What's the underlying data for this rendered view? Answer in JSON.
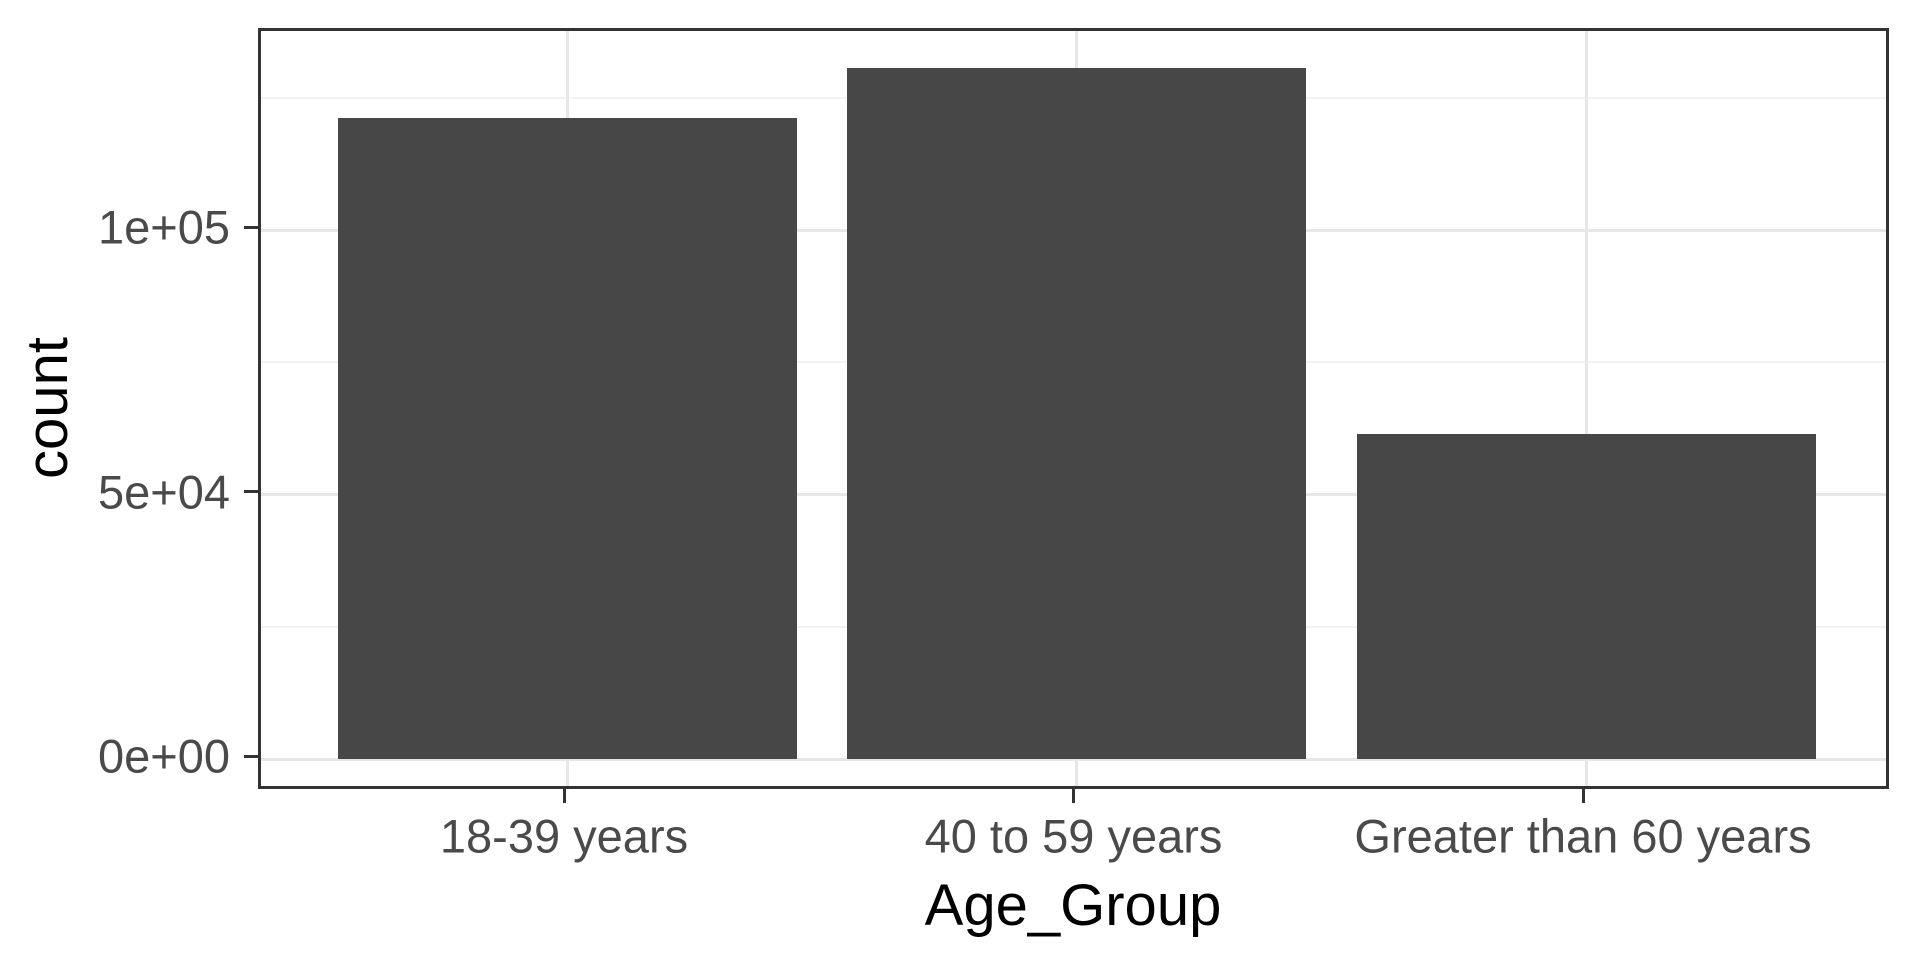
{
  "chart_data": {
    "type": "bar",
    "title": "",
    "xlabel": "Age_Group",
    "ylabel": "count",
    "categories": [
      "18-39 years",
      "40 to 59 years",
      "Greater than 60 years"
    ],
    "values": [
      121200,
      130600,
      61400
    ],
    "y_tick_labels": [
      "0e+00",
      "5e+04",
      "1e+05"
    ],
    "y_tick_values": [
      0,
      50000,
      100000
    ],
    "y_minor_values": [
      25000,
      75000,
      125000
    ],
    "ylim": [
      -6900,
      137700
    ],
    "grid": "major and minor horizontal, major vertical at categories",
    "legend": "none",
    "bar_width_fraction": 0.9,
    "style": "ggplot2 theme_bw"
  },
  "colors": {
    "bar_fill": "#474747",
    "panel_border": "#333333",
    "grid_major": "#e7e7e7",
    "grid_minor": "#f2f2f2",
    "tick_mark": "#333333",
    "tick_label": "#4a4a4a",
    "axis_title": "#000000",
    "background": "#ffffff"
  }
}
